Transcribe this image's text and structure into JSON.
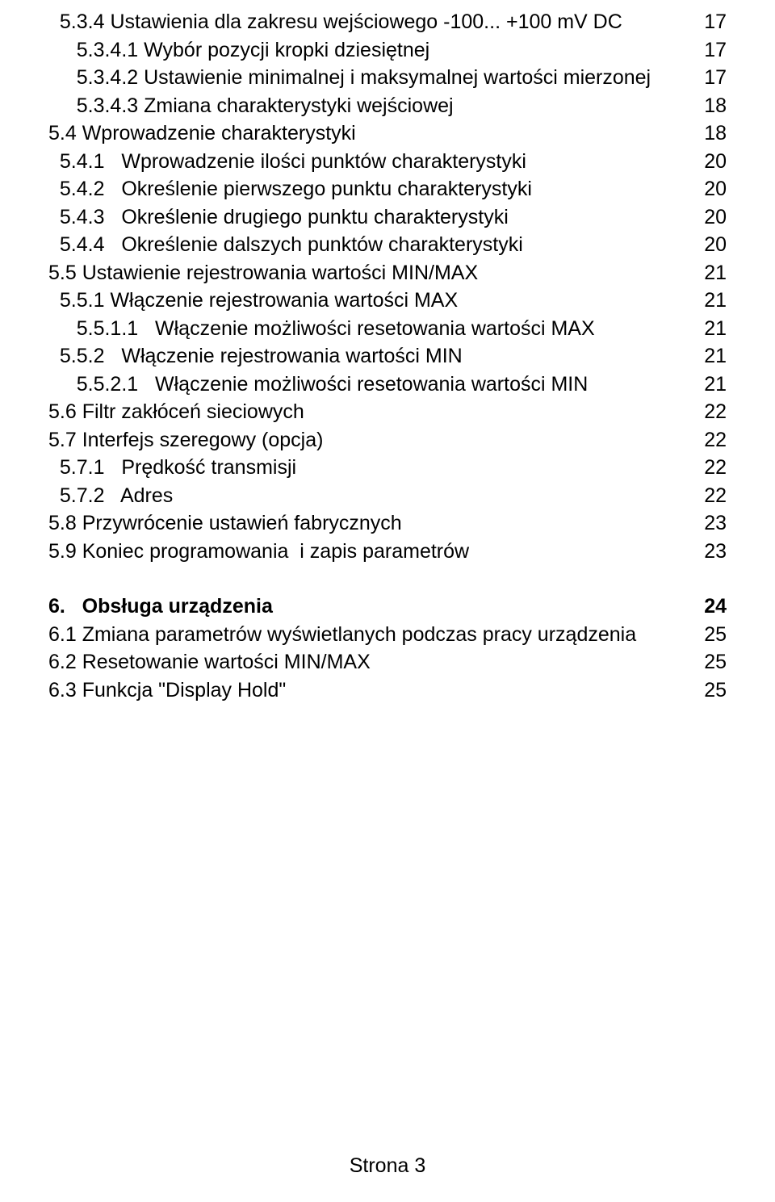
{
  "toc": [
    {
      "title": "  5.3.4 Ustawienia dla zakresu wejściowego -100... +100 mV DC",
      "page": "17",
      "bold": false
    },
    {
      "title": "     5.3.4.1 Wybór pozycji kropki dziesiętnej",
      "page": "17",
      "bold": false
    },
    {
      "title": "     5.3.4.2 Ustawienie minimalnej i maksymalnej wartości mierzonej",
      "page": "17",
      "bold": false
    },
    {
      "title": "     5.3.4.3 Zmiana charakterystyki wejściowej",
      "page": "18",
      "bold": false
    },
    {
      "title": "5.4 Wprowadzenie charakterystyki",
      "page": "18",
      "bold": false
    },
    {
      "title": "  5.4.1   Wprowadzenie ilości punktów charakterystyki",
      "page": "20",
      "bold": false
    },
    {
      "title": "  5.4.2   Określenie pierwszego punktu charakterystyki",
      "page": "20",
      "bold": false
    },
    {
      "title": "  5.4.3   Określenie drugiego punktu charakterystyki",
      "page": "20",
      "bold": false
    },
    {
      "title": "  5.4.4   Określenie dalszych punktów charakterystyki",
      "page": "20",
      "bold": false
    },
    {
      "title": "5.5 Ustawienie rejestrowania wartości MIN/MAX",
      "page": "21",
      "bold": false
    },
    {
      "title": "  5.5.1 Włączenie rejestrowania wartości MAX",
      "page": "21",
      "bold": false
    },
    {
      "title": "     5.5.1.1   Włączenie możliwości resetowania wartości MAX",
      "page": "21",
      "bold": false
    },
    {
      "title": "  5.5.2   Włączenie rejestrowania wartości MIN",
      "page": "21",
      "bold": false
    },
    {
      "title": "     5.5.2.1   Włączenie możliwości resetowania wartości MIN",
      "page": "21",
      "bold": false
    },
    {
      "title": "5.6 Filtr zakłóceń sieciowych",
      "page": "22",
      "bold": false
    },
    {
      "title": "5.7 Interfejs szeregowy (opcja)",
      "page": "22",
      "bold": false
    },
    {
      "title": "  5.7.1   Prędkość transmisji",
      "page": "22",
      "bold": false
    },
    {
      "title": "  5.7.2   Adres",
      "page": "22",
      "bold": false
    },
    {
      "title": "5.8 Przywrócenie ustawień fabrycznych",
      "page": "23",
      "bold": false
    },
    {
      "title": "5.9 Koniec programowania  i zapis parametrów",
      "page": "23",
      "bold": false
    },
    {
      "blank": true
    },
    {
      "title": "6.   Obsługa urządzenia",
      "page": "24",
      "bold": true
    },
    {
      "title": "6.1 Zmiana parametrów wyświetlanych podczas pracy urządzenia",
      "page": "25",
      "bold": false
    },
    {
      "title": "6.2 Resetowanie wartości MIN/MAX",
      "page": "25",
      "bold": false
    },
    {
      "title": "6.3 Funkcja \"Display Hold\"",
      "page": "25",
      "bold": false
    }
  ],
  "footer": "Strona 3"
}
